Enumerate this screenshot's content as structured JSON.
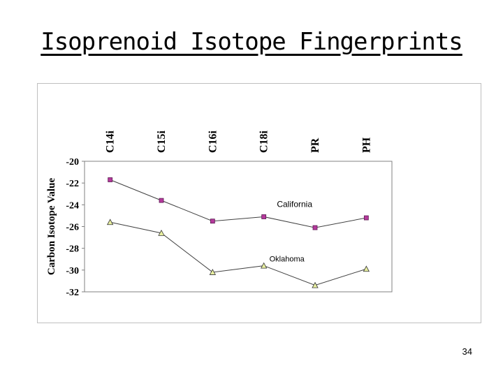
{
  "slide": {
    "title": "Isoprenoid Isotope Fingerprints",
    "page_number": "34"
  },
  "chart_data": {
    "type": "line",
    "categories": [
      "C14i",
      "C15i",
      "C16i",
      "C18i",
      "PR",
      "PH"
    ],
    "ylabel": "Carbon Isotope Value",
    "xlabel": "",
    "ylim": [
      -32,
      -20
    ],
    "yticks": [
      -20,
      -22,
      -24,
      -26,
      -28,
      -30,
      -32
    ],
    "x_axis_position": "top",
    "grid": false,
    "legend": "none",
    "series": [
      {
        "name": "California",
        "values": [
          -21.7,
          -23.6,
          -25.5,
          -25.1,
          -26.1,
          -25.2
        ],
        "marker": "square",
        "marker_color": "#b5399c",
        "line_color": "#404040"
      },
      {
        "name": "Oklahoma",
        "values": [
          -25.6,
          -26.6,
          -30.2,
          -29.6,
          -31.4,
          -29.9
        ],
        "marker": "triangle",
        "marker_color": "#e9f0a0",
        "line_color": "#404040"
      }
    ]
  }
}
